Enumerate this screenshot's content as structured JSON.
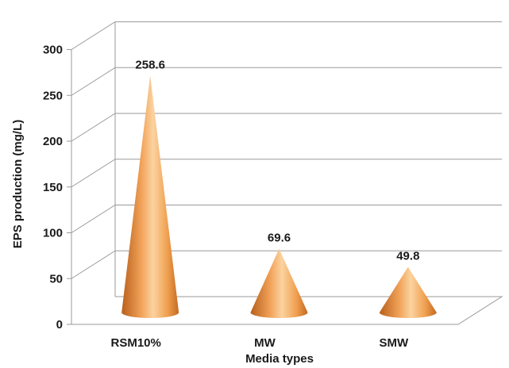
{
  "chart_data": {
    "type": "bar",
    "bar_shape": "3d-cone",
    "categories": [
      "RSM10%",
      "MW",
      "SMW"
    ],
    "values": [
      258.6,
      69.6,
      49.8
    ],
    "data_labels": [
      "258.6",
      "69.6",
      "49.8"
    ],
    "title": "",
    "xlabel": "Media types",
    "ylabel": "EPS production (mg/L)",
    "ylim": [
      0,
      300
    ],
    "yticks": [
      "0",
      "50",
      "100",
      "150",
      "200",
      "250",
      "300"
    ],
    "grid": true,
    "legend": "none",
    "colors": {
      "cone_dark": "#b8601c",
      "cone_mid": "#f2a35a",
      "cone_light": "#fbd3a0",
      "grid": "#9a9a9a"
    }
  }
}
